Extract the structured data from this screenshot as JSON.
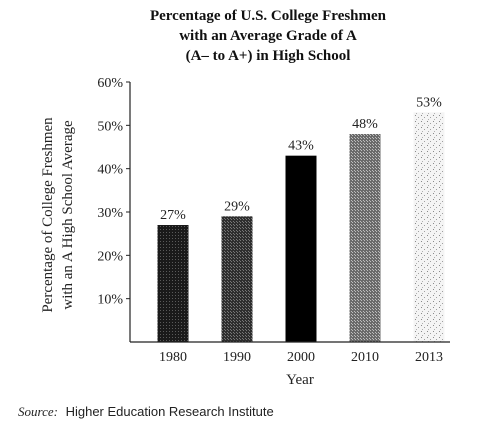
{
  "chart_data": {
    "type": "bar",
    "title_lines": [
      "Percentage of U.S. College Freshmen",
      "with an Average Grade of A",
      "(A– to A+) in High School"
    ],
    "categories": [
      "1980",
      "1990",
      "2000",
      "2010",
      "2013"
    ],
    "values": [
      27,
      29,
      43,
      48,
      53
    ],
    "value_labels": [
      "27%",
      "29%",
      "43%",
      "48%",
      "53%"
    ],
    "xlabel": "Year",
    "ylabel_lines": [
      "Percentage of College Freshmen",
      "with an A High School Average"
    ],
    "ylim": [
      0,
      60
    ],
    "y_ticks": [
      10,
      20,
      30,
      40,
      50,
      60
    ],
    "y_tick_labels": [
      "10%",
      "20%",
      "30%",
      "40%",
      "50%",
      "60%"
    ],
    "bar_fills": [
      "#222222",
      "#3a3a3a",
      "#000000",
      "#777777",
      "#cfcfcf"
    ],
    "grid": false,
    "legend": "none"
  },
  "source": {
    "prefix": "Source:",
    "text": "Higher Education Research Institute"
  }
}
